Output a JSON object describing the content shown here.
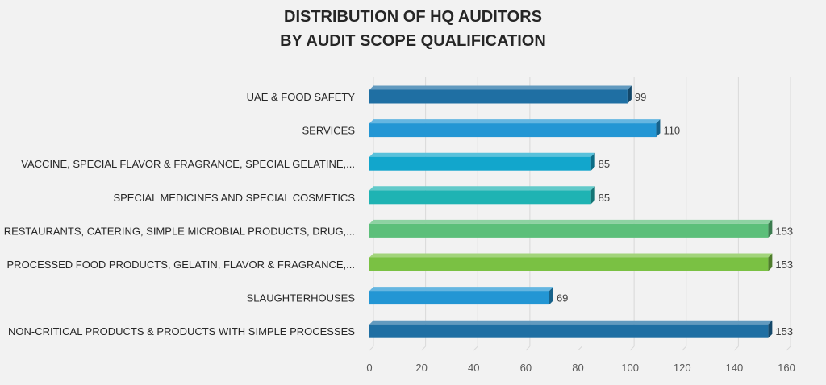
{
  "chart_data": {
    "type": "bar",
    "orientation": "horizontal",
    "title": "DISTRIBUTION OF HQ AUDITORS",
    "subtitle": "BY AUDIT SCOPE QUALIFICATION",
    "xlabel": "",
    "ylabel": "",
    "xlim": [
      0,
      160
    ],
    "ticks": [
      0,
      20,
      40,
      60,
      80,
      100,
      120,
      140,
      160
    ],
    "grid": true,
    "legend": "none",
    "categories": [
      "UAE & FOOD SAFETY",
      "SERVICES",
      "VACCINE, SPECIAL FLAVOR & FRAGRANCE, SPECIAL GELATINE,...",
      "SPECIAL MEDICINES AND SPECIAL COSMETICS",
      "RESTAURANTS, CATERING, SIMPLE MICROBIAL PRODUCTS, DRUG,...",
      "PROCESSED FOOD PRODUCTS, GELATIN, FLAVOR & FRAGRANCE,...",
      "SLAUGHTERHOUSES",
      "NON-CRITICAL PRODUCTS & PRODUCTS WITH SIMPLE PROCESSES"
    ],
    "values": [
      99,
      110,
      85,
      85,
      153,
      153,
      69,
      153
    ],
    "data_labels": [
      "99",
      "110",
      "85",
      "85",
      "153",
      "153",
      "69",
      "153"
    ],
    "colors": [
      "#1f6fa3",
      "#2396d4",
      "#12a6cc",
      "#1fb3b3",
      "#5cbf7a",
      "#7ac143",
      "#2396d4",
      "#1f6fa3"
    ]
  }
}
